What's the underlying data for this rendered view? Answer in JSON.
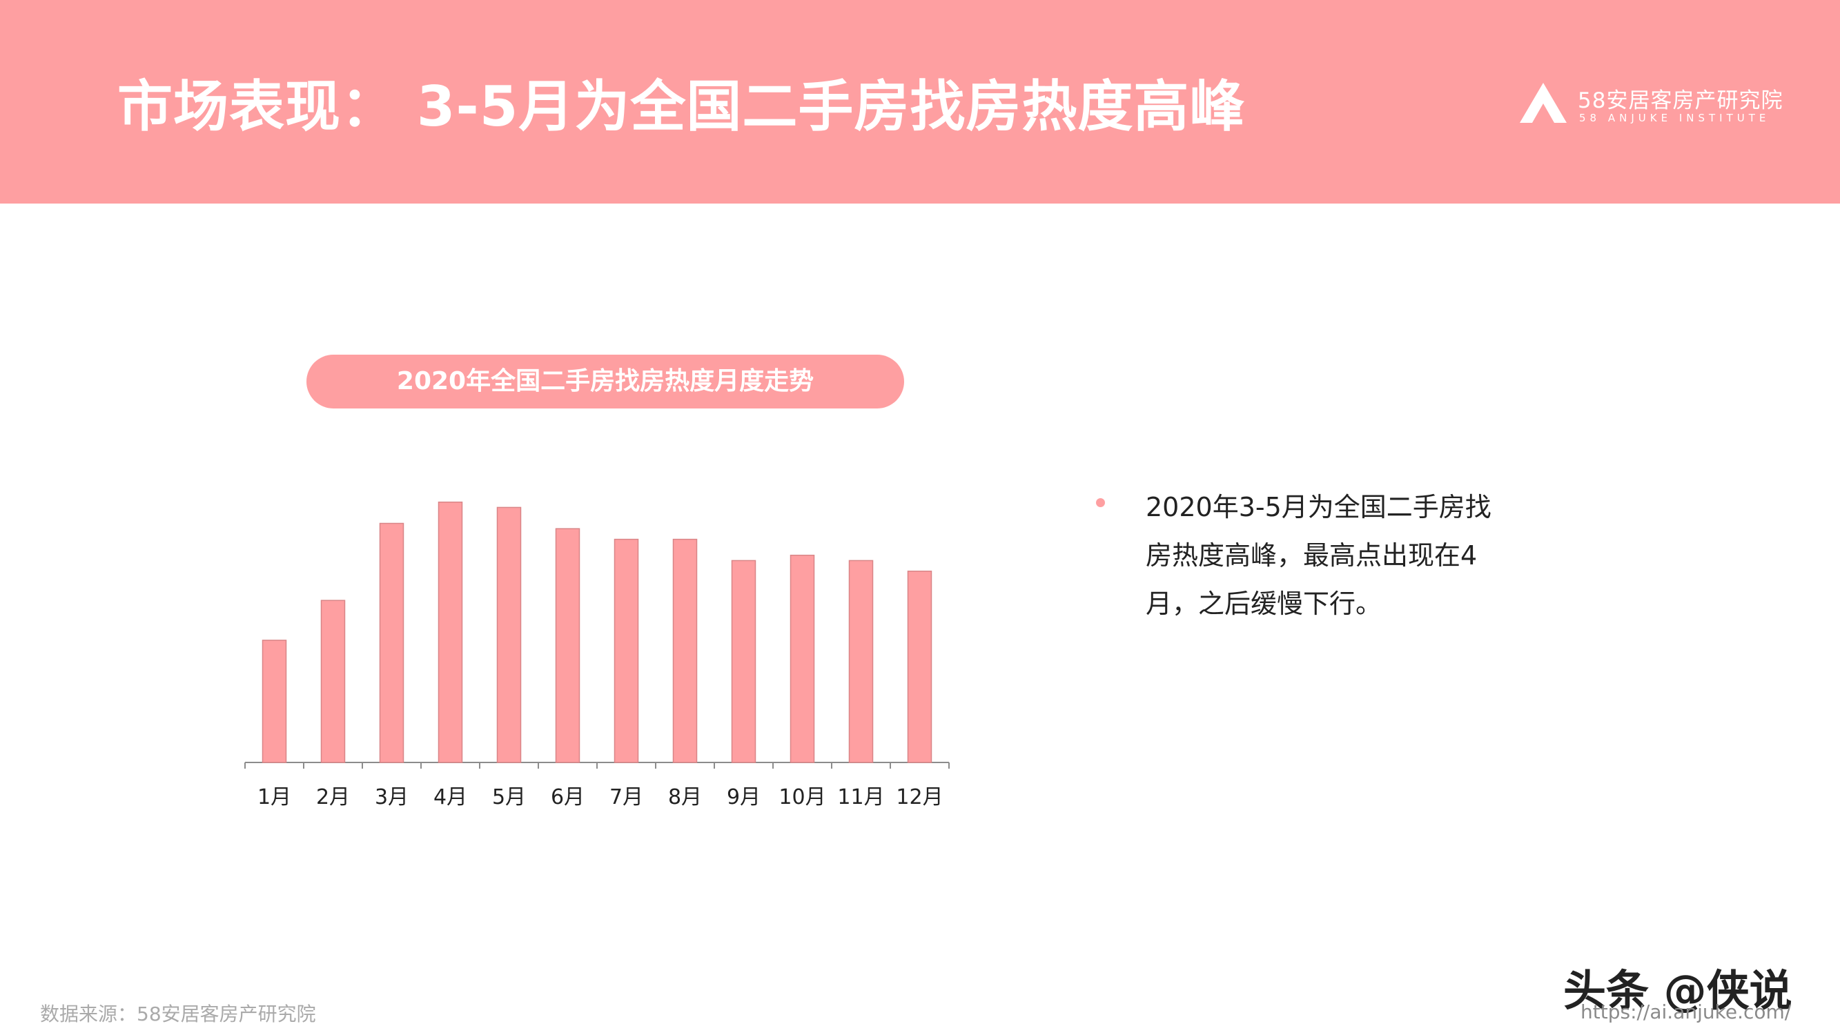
{
  "header": {
    "title": "市场表现： 3-5月为全国二手房找房热度高峰",
    "logo_cn": "58安居客房产研究院",
    "logo_en": "58 ANJUKE INSTITUTE",
    "logo_icon": "anjuke-a-logo-icon"
  },
  "chart_title": "2020年全国二手房找房热度月度走势",
  "chart_data": {
    "type": "bar",
    "title": "2020年全国二手房找房热度月度走势",
    "categories": [
      "1月",
      "2月",
      "3月",
      "4月",
      "5月",
      "6月",
      "7月",
      "8月",
      "9月",
      "10月",
      "11月",
      "12月"
    ],
    "values": [
      46,
      61,
      90,
      98,
      96,
      88,
      84,
      84,
      76,
      78,
      76,
      72
    ],
    "value_note": "",
    "ylim": [
      0,
      100
    ],
    "grid": false,
    "legend": "none",
    "bar_color": "#fe9fa1"
  },
  "bullet": {
    "text": "2020年3-5月为全国二手房找房热度高峰，最高点出现在4月，之后缓慢下行。"
  },
  "footer": {
    "source": "数据来源：58安居客房产研究院",
    "watermark": "头条 @侠说",
    "url": "https://ai.anjuke.com/"
  },
  "colors": {
    "accent": "#fe9fa1",
    "bar_stroke": "#d98587",
    "axis": "#8c8c8c"
  }
}
